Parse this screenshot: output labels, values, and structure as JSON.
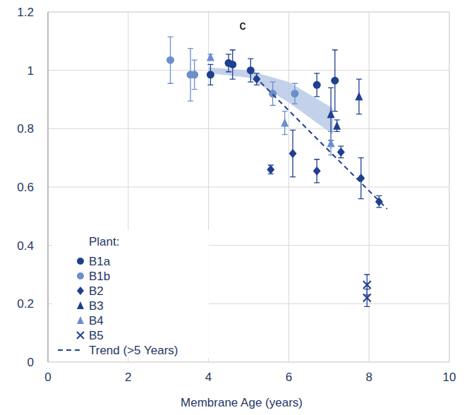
{
  "chart_data": {
    "type": "scatter",
    "title": "c",
    "x_label": "Membrane Age (years)",
    "legend_title": "Plant:",
    "legend": "lower left",
    "grid": true,
    "xlim": [
      0,
      10
    ],
    "xticks": [
      0,
      2,
      4,
      6,
      8,
      10
    ],
    "ylim": [
      0,
      1.2
    ],
    "yticks": [
      0,
      0.2,
      0.4,
      0.6,
      0.8,
      1,
      1.2
    ],
    "band": {
      "color": "#b9c9e6",
      "x": [
        4,
        5,
        6,
        7.1
      ],
      "upper": [
        1.01,
        1.0,
        0.96,
        0.87
      ],
      "lower": [
        0.99,
        0.975,
        0.89,
        0.78
      ]
    },
    "series": [
      {
        "name": "B1a",
        "color": "#1f3f8f",
        "marker": "circle",
        "x": [
          4.05,
          4.5,
          4.6,
          5.05,
          6.7,
          7.15
        ],
        "values": [
          0.985,
          1.025,
          1.02,
          1.0,
          0.95,
          0.965
        ],
        "errors": [
          0.035,
          0.03,
          0.05,
          0.04,
          0.04,
          0.105
        ]
      },
      {
        "name": "B1b",
        "color": "#6b8fcc",
        "marker": "circle",
        "x": [
          3.05,
          3.55,
          3.65,
          5.6,
          6.15
        ],
        "values": [
          1.035,
          0.985,
          0.985,
          0.92,
          0.92
        ],
        "errors": [
          0.08,
          0.09,
          0.05,
          0.04,
          0.035
        ]
      },
      {
        "name": "B2",
        "color": "#1f3f8f",
        "marker": "diamond",
        "x": [
          5.2,
          5.55,
          6.1,
          6.7,
          7.3,
          7.8,
          8.25
        ],
        "values": [
          0.97,
          0.66,
          0.715,
          0.655,
          0.72,
          0.63,
          0.55
        ],
        "errors": [
          0.02,
          0.015,
          0.08,
          0.04,
          0.02,
          0.07,
          0.02
        ]
      },
      {
        "name": "B3",
        "color": "#1f3f8f",
        "marker": "triangle",
        "x": [
          7.05,
          7.2,
          7.75
        ],
        "values": [
          0.85,
          0.81,
          0.91
        ],
        "errors": [
          0.09,
          0.02,
          0.06
        ]
      },
      {
        "name": "B4",
        "color": "#6b8fcc",
        "marker": "triangle",
        "x": [
          4.05,
          5.9,
          7.05
        ],
        "values": [
          1.045,
          0.82,
          0.75
        ],
        "errors": [
          0.01,
          0.04,
          0.04
        ]
      },
      {
        "name": "B5",
        "color": "#1f3f8f",
        "marker": "x",
        "x": [
          7.95,
          7.95
        ],
        "values": [
          0.265,
          0.22
        ],
        "errors": [
          0.035,
          0.03
        ]
      },
      {
        "name": "Trend (>5 Years)",
        "color": "#1f3f8f",
        "type": "line",
        "line_style": "dashed",
        "x": [
          5.0,
          8.45
        ],
        "values": [
          1.0,
          0.525
        ]
      }
    ]
  }
}
